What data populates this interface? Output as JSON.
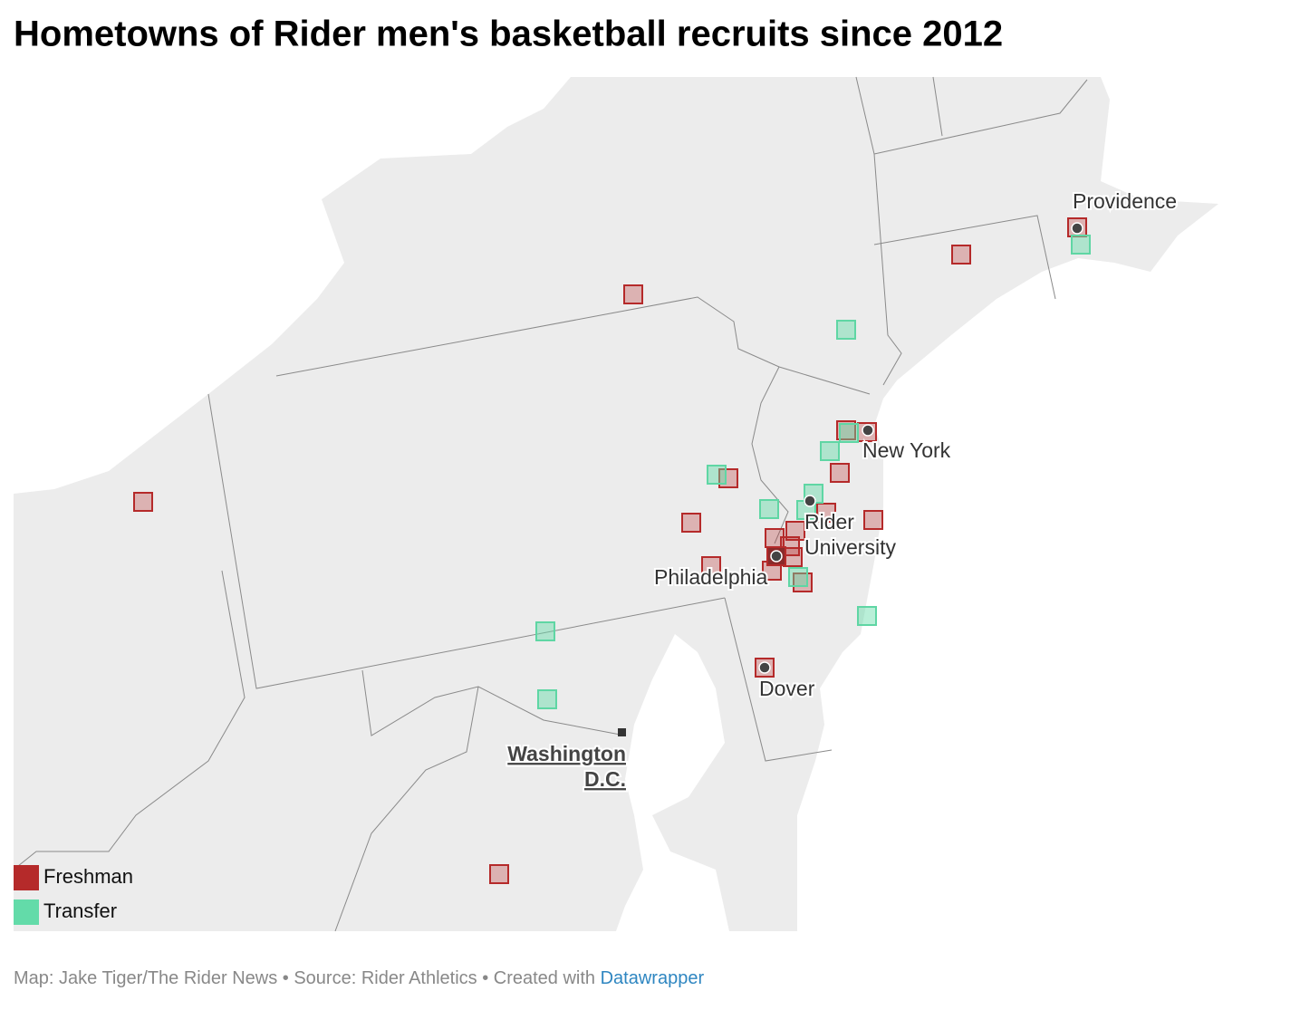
{
  "title": "Hometowns of Rider men's basketball recruits since 2012",
  "cities": [
    {
      "lines": [
        "Providence"
      ]
    },
    {
      "lines": [
        "New York"
      ]
    },
    {
      "lines": [
        "Rider",
        "University"
      ]
    },
    {
      "lines": [
        "Philadelphia"
      ]
    },
    {
      "lines": [
        "Dover"
      ]
    },
    {
      "lines": [
        "Washington",
        "D.C."
      ]
    }
  ],
  "legend": [
    "Freshman",
    "Transfer"
  ],
  "footer": {
    "text": "Map: Jake Tiger/The Rider News • Source: Rider Athletics • Created with",
    "link": "Datawrapper"
  }
}
